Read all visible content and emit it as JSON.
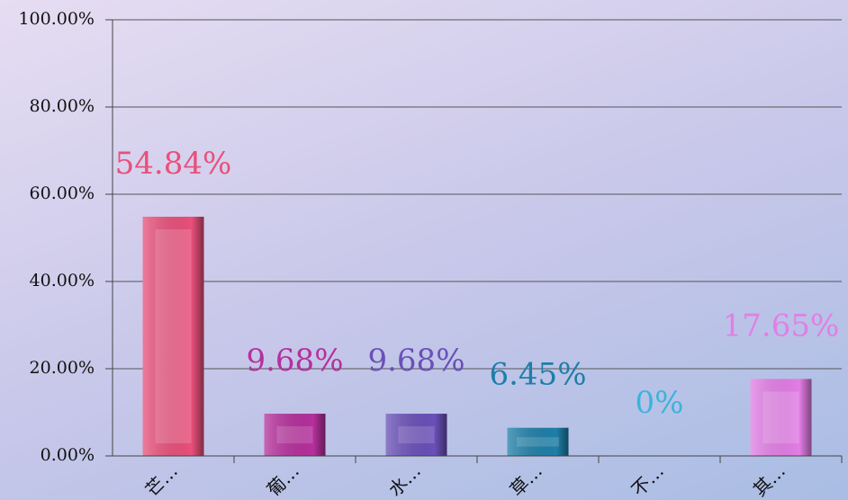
{
  "chart_data": {
    "type": "bar",
    "categories": [
      "芒…",
      "葡…",
      "水…",
      "草…",
      "不…",
      "其…"
    ],
    "values": [
      54.84,
      9.68,
      9.68,
      6.45,
      0,
      17.65
    ],
    "value_labels": [
      "54.84%",
      "9.68%",
      "9.68%",
      "6.45%",
      "0%",
      "17.65%"
    ],
    "colors": [
      "#e8507a",
      "#b5309c",
      "#6a50b8",
      "#1f7fa8",
      "#3ab4dc",
      "#e27ee6"
    ],
    "ylim": [
      0,
      100
    ],
    "yticks": [
      {
        "value": 0,
        "label": "0.00%"
      },
      {
        "value": 20,
        "label": "20.00%"
      },
      {
        "value": 40,
        "label": "40.00%"
      },
      {
        "value": 60,
        "label": "60.00%"
      },
      {
        "value": 80,
        "label": "80.00%"
      },
      {
        "value": 100,
        "label": "100.00%"
      }
    ],
    "grid": true
  }
}
